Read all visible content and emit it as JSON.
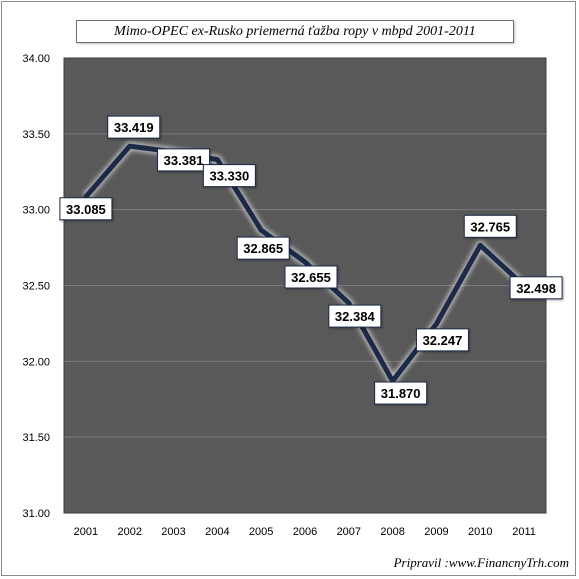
{
  "chart_data": {
    "type": "line",
    "title": "Mimo-OPEC ex-Rusko priemerná ťažba ropy v mbpd 2001-2011",
    "categories": [
      "2001",
      "2002",
      "2003",
      "2004",
      "2005",
      "2006",
      "2007",
      "2008",
      "2009",
      "2010",
      "2011"
    ],
    "series": [
      {
        "values": [
          33.085,
          33.419,
          33.381,
          33.33,
          32.865,
          32.655,
          32.384,
          31.87,
          32.247,
          32.765,
          32.498
        ],
        "labels": [
          "33.085",
          "33.419",
          "33.381",
          "33.330",
          "32.865",
          "32.655",
          "32.384",
          "31.870",
          "32.247",
          "32.765",
          "32.498"
        ]
      }
    ],
    "y_ticks": [
      "34.00",
      "33.50",
      "33.00",
      "32.50",
      "32.00",
      "31.50",
      "31.00"
    ],
    "ylim": [
      31.0,
      34.0
    ],
    "grid": true,
    "plot_background": "#595959",
    "line_color": "#1c2a48",
    "gridline_color": "#7a7a7a"
  },
  "credit": "Pripravil :www.FinancnyTrh.com"
}
